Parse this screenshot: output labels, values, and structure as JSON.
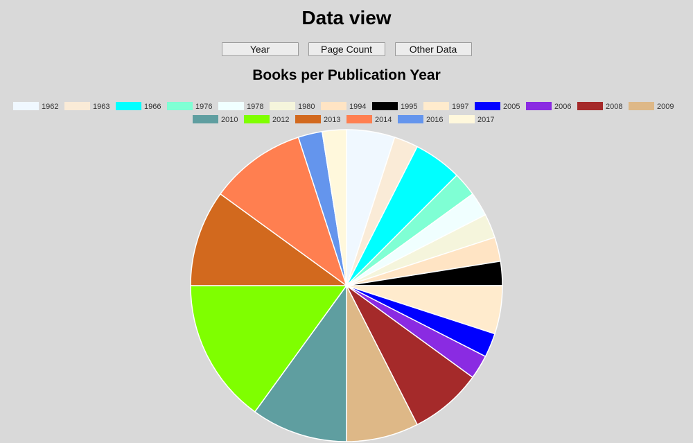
{
  "page": {
    "title": "Data view"
  },
  "buttons": {
    "year": "Year",
    "page_count": "Page Count",
    "other_data": "Other Data"
  },
  "chart_data": {
    "type": "pie",
    "title": "Books per Publication Year",
    "legend_position": "top",
    "categories": [
      "1962",
      "1963",
      "1966",
      "1976",
      "1978",
      "1980",
      "1994",
      "1995",
      "1997",
      "2005",
      "2006",
      "2008",
      "2009",
      "2010",
      "2012",
      "2013",
      "2014",
      "2016",
      "2017"
    ],
    "values": [
      2,
      1,
      2,
      1,
      1,
      1,
      1,
      1,
      2,
      1,
      1,
      3,
      3,
      4,
      6,
      4,
      4,
      1,
      1
    ],
    "colors": [
      "#f0f8ff",
      "#faebd7",
      "#00ffff",
      "#7fffd4",
      "#f0ffff",
      "#f5f5dc",
      "#ffe4c4",
      "#000000",
      "#ffebcd",
      "#0000ff",
      "#8a2be2",
      "#a52a2a",
      "#deb887",
      "#5f9ea0",
      "#7fff00",
      "#d2691e",
      "#ff7f50",
      "#6495ed",
      "#fff8dc"
    ]
  }
}
